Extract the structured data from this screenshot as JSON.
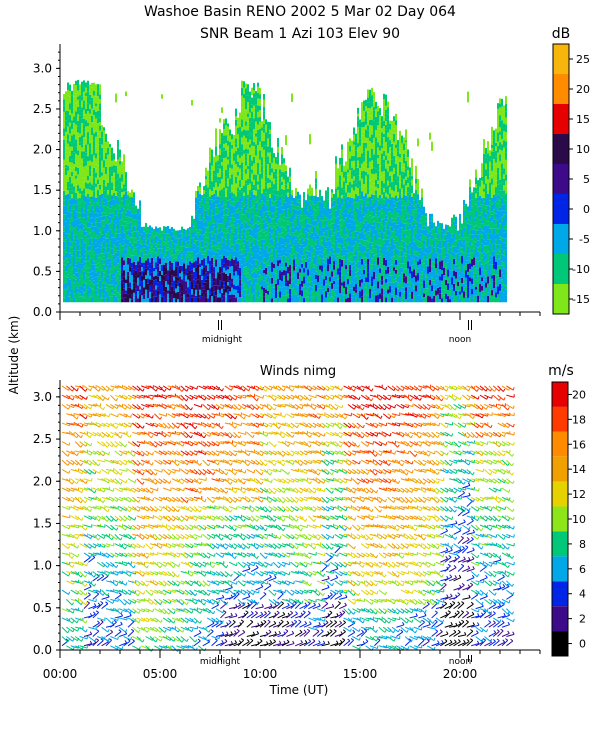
{
  "header": {
    "title_line1": "Washoe Basin RENO 2002   5 Mar 02 Day 064",
    "title_line2": "SNR Beam 1 Azi 103 Elev 90"
  },
  "shared_axis": {
    "ylabel": "Altitude (km)",
    "xlabel": "Time (UT)",
    "midnight_label": "midnight",
    "noon_label": "noon"
  },
  "chart_data": [
    {
      "type": "heatmap",
      "title": "SNR Beam 1 Azi 103 Elev 90",
      "ylabel": "Altitude (km)",
      "ylim": [
        0.0,
        3.3
      ],
      "y_ticks": [
        "0.0",
        "0.5",
        "1.0",
        "1.5",
        "2.0",
        "2.5",
        "3.0"
      ],
      "colorbar": {
        "unit": "dB",
        "ticks": [
          "25",
          "20",
          "15",
          "10",
          "5",
          "0",
          "-5",
          "-10",
          "-15"
        ],
        "colors": [
          "#f8b60c",
          "#ff8c00",
          "#e60000",
          "#2b0a4a",
          "#3d0a8a",
          "#0025e6",
          "#00a8e8",
          "#00c878",
          "#7fe61a"
        ]
      }
    },
    {
      "type": "scatter",
      "title": "Winds nimg",
      "xlabel": "Time (UT)",
      "ylabel": "Altitude (km)",
      "ylim": [
        0.0,
        3.2
      ],
      "xlim_hours": [
        0,
        24
      ],
      "y_ticks": [
        "0.0",
        "0.5",
        "1.0",
        "1.5",
        "2.0",
        "2.5",
        "3.0"
      ],
      "x_ticks": [
        "00:00",
        "05:00",
        "10:00",
        "15:00",
        "20:00"
      ],
      "colorbar": {
        "unit": "m/s",
        "ticks": [
          "20",
          "18",
          "16",
          "14",
          "12",
          "10",
          "8",
          "6",
          "4",
          "2",
          "0"
        ],
        "colors": [
          "#e60000",
          "#ff3b00",
          "#ff8c00",
          "#f0a000",
          "#e6d200",
          "#8ce61a",
          "#00c878",
          "#00a8e8",
          "#0025e6",
          "#3d0a8a",
          "#000000"
        ]
      }
    }
  ]
}
